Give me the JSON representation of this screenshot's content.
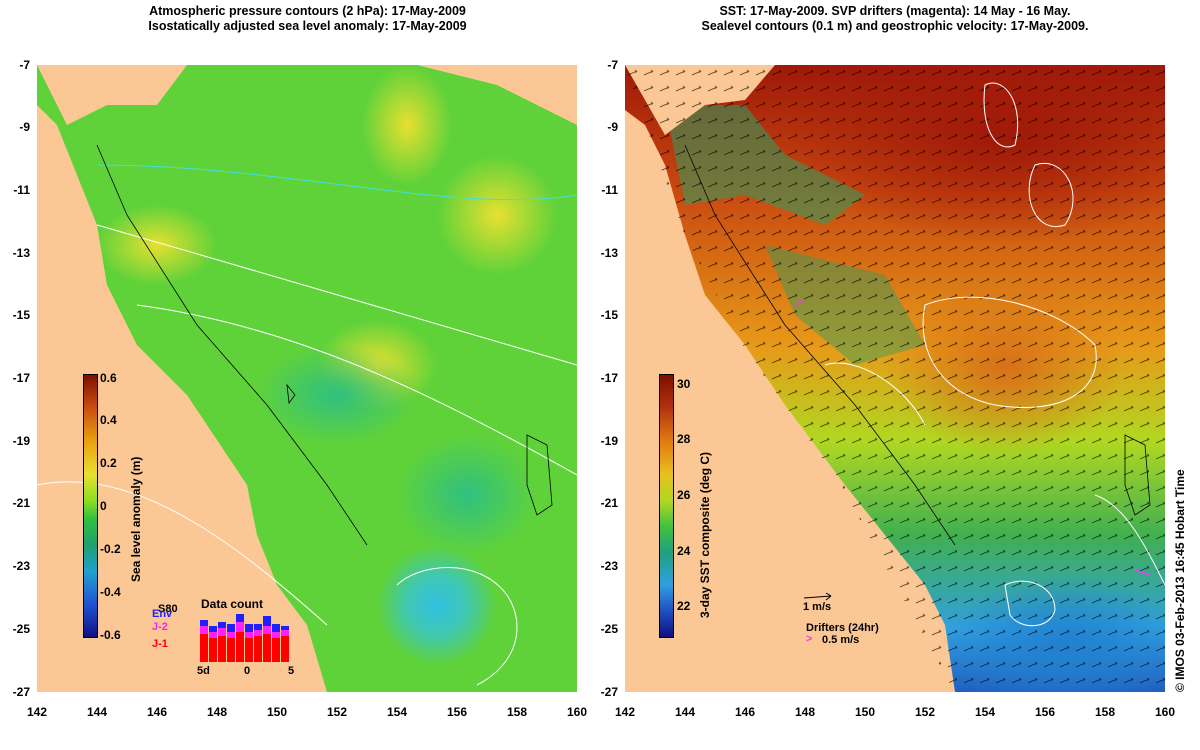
{
  "left_panel": {
    "title_line1": "Atmospheric pressure contours (2 hPa): 17-May-2009",
    "title_line2": "Isostatically adjusted sea level anomaly: 17-May-2009",
    "colorbar_label": "Sea level anomaly (m)",
    "colorbar_ticks": [
      "0.6",
      "0.4",
      "0.2",
      "0",
      "-0.2",
      "-0.4",
      "-0.6"
    ],
    "data_count": {
      "title": "Data count",
      "legend": [
        "S80",
        "Env",
        "J-2",
        "J-1"
      ],
      "legend_colors": [
        "#000000",
        "#2020ff",
        "#ff20ff",
        "#ff0000"
      ],
      "axis_labels": [
        "5d",
        "0",
        "5"
      ]
    }
  },
  "right_panel": {
    "title_line1": "SST: 17-May-2009. SVP drifters (magenta): 14 May - 16 May.",
    "title_line2": "Sealevel contours (0.1 m) and geostrophic velocity: 17-May-2009.",
    "colorbar_label": "3-day SST composite (deg C)",
    "colorbar_ticks": [
      "30",
      "28",
      "26",
      "24",
      "22"
    ],
    "velocity_scale_label": "1 m/s",
    "drifters_label": "Drifters (24hr)",
    "drifters_scale_label": "0.5 m/s"
  },
  "axes": {
    "y_ticks": [
      "-7",
      "-9",
      "-11",
      "-13",
      "-15",
      "-17",
      "-19",
      "-21",
      "-23",
      "-25",
      "-27"
    ],
    "x_ticks": [
      "142",
      "144",
      "146",
      "148",
      "150",
      "152",
      "154",
      "156",
      "158",
      "160"
    ]
  },
  "credit": "© IMOS 03-Feb-2013 16:45 Hobart Time",
  "colors": {
    "land": "#fbc795",
    "ocean_green": "#5fd23a",
    "sst_warm": "#e07a10",
    "sst_hot": "#a01808",
    "sst_cool": "#30a0e0"
  }
}
